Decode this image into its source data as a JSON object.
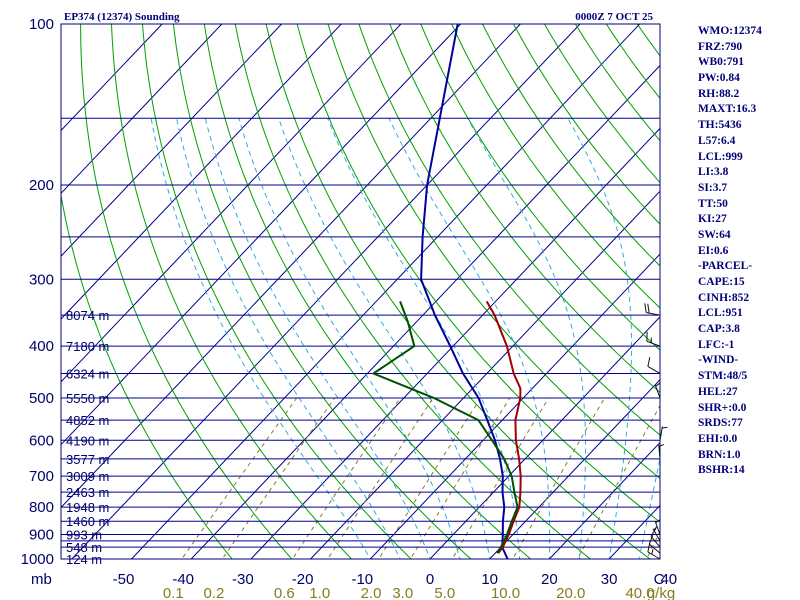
{
  "chart_data": {
    "type": "skew-t sounding",
    "title": "EP374 (12374) Sounding",
    "time": "0000Z  7 OCT 25",
    "pressure_axis_label": "mb",
    "pressure_levels": [
      100,
      150,
      200,
      250,
      300,
      350,
      400,
      450,
      500,
      550,
      600,
      650,
      700,
      750,
      800,
      850,
      900,
      925,
      950,
      1000
    ],
    "pressure_tick_labels": [
      "100",
      "200",
      "300",
      "400",
      "500",
      "600",
      "700",
      "800",
      "900",
      "1000"
    ],
    "temperature_ticks": [
      -50,
      -40,
      -30,
      -20,
      -10,
      0,
      10,
      20,
      30,
      40
    ],
    "temperature_tick_labels": [
      "-50",
      "-40",
      "-30",
      "-20",
      "-10",
      "0",
      "10",
      "20",
      "30",
      "40"
    ],
    "temperature_unit": "C",
    "dry_adiabats_theta_K": [
      240,
      250,
      260,
      270,
      280,
      290,
      300,
      310,
      320,
      330,
      340,
      350,
      360,
      370,
      380,
      390,
      400,
      410,
      420,
      430,
      440,
      450,
      460
    ],
    "moist_adiabats_C": [
      -10,
      -5,
      0,
      5,
      10,
      15,
      20,
      25,
      30,
      35
    ],
    "mixing_ratio_lines_gkg": [
      0.1,
      0.2,
      0.6,
      1.0,
      2.0,
      3.0,
      5.0,
      10.0,
      20.0,
      40.0
    ],
    "mixing_ratio_labels": [
      "0.1",
      "0.2",
      "0.6",
      "1.0",
      "2.0",
      "3.0",
      "5.0",
      "10.0",
      "20.0",
      "40.0"
    ],
    "mixing_ratio_unit": "g/kg",
    "height_labels": [
      {
        "p": 350,
        "label": "8074 m"
      },
      {
        "p": 400,
        "label": "7180 m"
      },
      {
        "p": 450,
        "label": "6324 m"
      },
      {
        "p": 500,
        "label": "5550 m"
      },
      {
        "p": 550,
        "label": "4852 m"
      },
      {
        "p": 600,
        "label": "4190 m"
      },
      {
        "p": 650,
        "label": "3577 m"
      },
      {
        "p": 700,
        "label": "3009 m"
      },
      {
        "p": 750,
        "label": "2463 m"
      },
      {
        "p": 800,
        "label": "1948 m"
      },
      {
        "p": 850,
        "label": "1460 m"
      },
      {
        "p": 900,
        "label": "993 m"
      },
      {
        "p": 950,
        "label": "548 m"
      },
      {
        "p": 1000,
        "label": "124 m"
      }
    ],
    "series": [
      {
        "name": "parcel",
        "color": "#00009c",
        "points": [
          [
            1000,
            13.0
          ],
          [
            950,
            10.2
          ],
          [
            900,
            8.3
          ],
          [
            850,
            6.2
          ],
          [
            800,
            4.2
          ],
          [
            750,
            1.5
          ],
          [
            700,
            -1.0
          ],
          [
            650,
            -4.2
          ],
          [
            600,
            -8.0
          ],
          [
            550,
            -12.5
          ],
          [
            500,
            -17.5
          ],
          [
            450,
            -24.0
          ],
          [
            400,
            -30.5
          ],
          [
            350,
            -38.0
          ],
          [
            300,
            -46.0
          ],
          [
            250,
            -52.5
          ],
          [
            200,
            -60.0
          ],
          [
            150,
            -68.5
          ],
          [
            100,
            -80.5
          ]
        ]
      },
      {
        "name": "temperature",
        "color": "#a00000",
        "points": [
          [
            975,
            10.5
          ],
          [
            950,
            10.3
          ],
          [
            900,
            9.3
          ],
          [
            850,
            8.0
          ],
          [
            800,
            6.7
          ],
          [
            750,
            4.5
          ],
          [
            700,
            2.0
          ],
          [
            650,
            -1.0
          ],
          [
            600,
            -4.5
          ],
          [
            550,
            -7.8
          ],
          [
            500,
            -10.5
          ],
          [
            480,
            -12.0
          ],
          [
            450,
            -15.5
          ],
          [
            400,
            -21.0
          ],
          [
            350,
            -28.0
          ],
          [
            330,
            -31.5
          ]
        ]
      },
      {
        "name": "dewpoint",
        "color": "#005000",
        "points": [
          [
            975,
            10.3
          ],
          [
            950,
            10.0
          ],
          [
            900,
            9.0
          ],
          [
            850,
            7.7
          ],
          [
            800,
            6.4
          ],
          [
            750,
            3.5
          ],
          [
            700,
            0.5
          ],
          [
            650,
            -3.5
          ],
          [
            600,
            -8.5
          ],
          [
            550,
            -14.0
          ],
          [
            500,
            -25.0
          ],
          [
            450,
            -39.0
          ],
          [
            400,
            -36.5
          ],
          [
            360,
            -41.5
          ],
          [
            330,
            -46.0
          ]
        ]
      }
    ],
    "wind_barbs": [
      {
        "p": 1000,
        "dir": 300,
        "kt": 15
      },
      {
        "p": 975,
        "dir": 310,
        "kt": 10
      },
      {
        "p": 950,
        "dir": 320,
        "kt": 10
      },
      {
        "p": 925,
        "dir": 330,
        "kt": 5
      },
      {
        "p": 900,
        "dir": 340,
        "kt": 5
      },
      {
        "p": 650,
        "dir": 355,
        "kt": 5
      },
      {
        "p": 600,
        "dir": 10,
        "kt": 5
      },
      {
        "p": 500,
        "dir": 340,
        "kt": 5
      },
      {
        "p": 450,
        "dir": 300,
        "kt": 10
      },
      {
        "p": 400,
        "dir": 290,
        "kt": 15
      },
      {
        "p": 350,
        "dir": 280,
        "kt": 20
      }
    ],
    "indices": [
      "WMO:12374",
      "FRZ:790",
      "WB0:791",
      "PW:0.84",
      "RH:88.2",
      "MAXT:16.3",
      "TH:5436",
      "L57:6.4",
      "LCL:999",
      "LI:3.8",
      "SI:3.7",
      "TT:50",
      "KI:27",
      "SW:64",
      "EI:0.6",
      "-PARCEL-",
      "CAPE:15",
      "CINH:852",
      "LCL:951",
      "CAP:3.8",
      "LFC:-1",
      "-WIND-",
      "STM:48/5",
      "HEL:27",
      "SHR+:0.0",
      "SRDS:77",
      "EHI:0.0",
      "BRN:1.0",
      "BSHR:14"
    ],
    "colors": {
      "isobar": "#00008b",
      "isotherm": "#00008b",
      "dry_adiabat": "#00a000",
      "moist_adiabat": "#33aadd",
      "mixing_ratio": "#8a7a1f",
      "text": "#00007a"
    }
  }
}
